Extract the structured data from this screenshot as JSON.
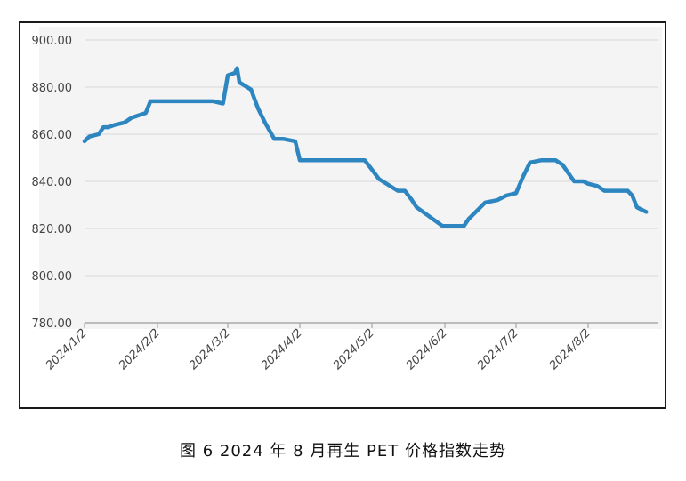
{
  "chart_data": {
    "type": "line",
    "title": "",
    "xlabel": "",
    "ylabel": "",
    "ylim": [
      780,
      900
    ],
    "y_ticks": [
      "900.00",
      "880.00",
      "860.00",
      "840.00",
      "820.00",
      "800.00",
      "780.00"
    ],
    "y_tick_values": [
      900,
      880,
      860,
      840,
      820,
      800,
      780
    ],
    "x_ticks": [
      "2024/1/2",
      "2024/2/2",
      "2024/3/2",
      "2024/4/2",
      "2024/5/2",
      "2024/6/2",
      "2024/7/2",
      "2024/8/2"
    ],
    "grid": true,
    "series": [
      {
        "color": "#2e86c1",
        "x": [
          "2024/1/2",
          "2024/1/4",
          "2024/1/8",
          "2024/1/10",
          "2024/1/12",
          "2024/1/15",
          "2024/1/19",
          "2024/1/22",
          "2024/1/25",
          "2024/1/28",
          "2024/1/30",
          "2024/2/2",
          "2024/2/15",
          "2024/2/25",
          "2024/2/29",
          "2024/3/2",
          "2024/3/5",
          "2024/3/6",
          "2024/3/7",
          "2024/3/12",
          "2024/3/15",
          "2024/3/18",
          "2024/3/22",
          "2024/3/26",
          "2024/3/31",
          "2024/4/2",
          "2024/4/29",
          "2024/5/2",
          "2024/5/5",
          "2024/5/13",
          "2024/5/16",
          "2024/5/19",
          "2024/5/21",
          "2024/6/1",
          "2024/6/10",
          "2024/6/12",
          "2024/6/16",
          "2024/6/19",
          "2024/6/24",
          "2024/6/28",
          "2024/7/2",
          "2024/7/5",
          "2024/7/8",
          "2024/7/13",
          "2024/7/19",
          "2024/7/22",
          "2024/7/27",
          "2024/7/31",
          "2024/8/2",
          "2024/8/6",
          "2024/8/9",
          "2024/8/16",
          "2024/8/19",
          "2024/8/21",
          "2024/8/23",
          "2024/8/27"
        ],
        "y": [
          857,
          859,
          860,
          863,
          863,
          864,
          865,
          867,
          868,
          869,
          874,
          874,
          874,
          874,
          873,
          885,
          886,
          888,
          882,
          879,
          871,
          865,
          858,
          858,
          857,
          849,
          849,
          845,
          841,
          836,
          836,
          832,
          829,
          821,
          821,
          824,
          828,
          831,
          832,
          834,
          835,
          842,
          848,
          849,
          849,
          847,
          840,
          840,
          839,
          838,
          836,
          836,
          836,
          834,
          829,
          827
        ]
      }
    ]
  },
  "caption": "图 6  2024 年 8 月再生 PET 价格指数走势"
}
